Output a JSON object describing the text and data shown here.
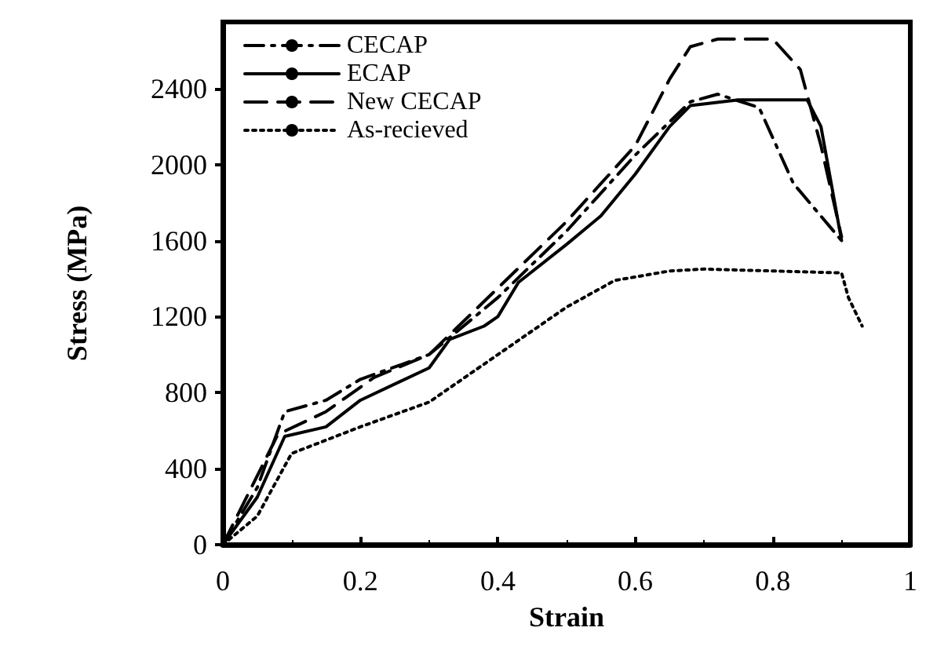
{
  "chart_data": {
    "type": "line",
    "xlabel": "Strain",
    "ylabel": "Stress (MPa)",
    "xlim": [
      0,
      1
    ],
    "xticks": [
      0,
      0.2,
      0.4,
      0.6,
      0.8,
      1
    ],
    "ylim": [
      0,
      2750
    ],
    "yticks": [
      0,
      400,
      800,
      1200,
      1600,
      2000,
      2400
    ],
    "grid": false,
    "legend": "top left",
    "marker": "none",
    "series": [
      {
        "name": "CECAP",
        "color": "#000000",
        "line_style": "dashdot",
        "x": [
          0,
          0.05,
          0.09,
          0.15,
          0.2,
          0.3,
          0.4,
          0.5,
          0.6,
          0.68,
          0.72,
          0.78,
          0.83,
          0.9
        ],
        "values": [
          0,
          300,
          700,
          760,
          870,
          1000,
          1300,
          1650,
          2050,
          2330,
          2370,
          2300,
          1900,
          1600
        ]
      },
      {
        "name": "ECAP",
        "color": "#000000",
        "line_style": "solid",
        "x": [
          0,
          0.05,
          0.09,
          0.15,
          0.2,
          0.3,
          0.33,
          0.38,
          0.4,
          0.43,
          0.5,
          0.55,
          0.6,
          0.65,
          0.68,
          0.75,
          0.85,
          0.87,
          0.9
        ],
        "values": [
          0,
          250,
          570,
          620,
          760,
          930,
          1080,
          1150,
          1200,
          1380,
          1580,
          1730,
          1950,
          2200,
          2310,
          2340,
          2340,
          2200,
          1600
        ]
      },
      {
        "name": "New CECAP",
        "color": "#000000",
        "line_style": "dashed",
        "x": [
          0,
          0.08,
          0.15,
          0.22,
          0.3,
          0.4,
          0.5,
          0.6,
          0.65,
          0.68,
          0.72,
          0.8,
          0.84,
          0.87,
          0.9
        ],
        "values": [
          0,
          580,
          700,
          880,
          1000,
          1350,
          1700,
          2100,
          2450,
          2620,
          2660,
          2660,
          2500,
          2100,
          1620
        ]
      },
      {
        "name": "As-recieved",
        "color": "#000000",
        "line_style": "dotted",
        "x": [
          0,
          0.05,
          0.1,
          0.2,
          0.3,
          0.4,
          0.5,
          0.57,
          0.65,
          0.7,
          0.8,
          0.9,
          0.91,
          0.93
        ],
        "values": [
          0,
          150,
          480,
          620,
          750,
          1000,
          1250,
          1390,
          1440,
          1450,
          1440,
          1430,
          1300,
          1150
        ]
      }
    ]
  }
}
